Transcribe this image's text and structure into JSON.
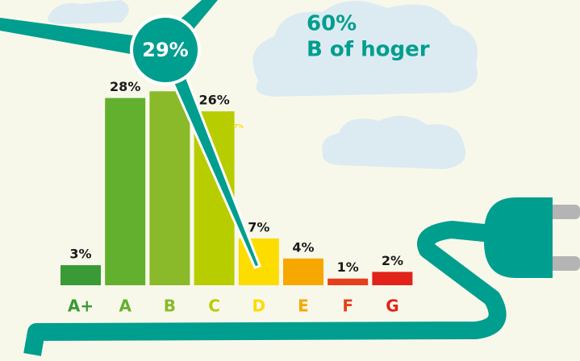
{
  "chart_data": {
    "type": "bar",
    "headline": "60%",
    "subheadline": "B of hoger",
    "small_note": "7%",
    "categories": [
      "A+",
      "A",
      "B",
      "C",
      "D",
      "E",
      "F",
      "G"
    ],
    "values": [
      3,
      28,
      29,
      26,
      7,
      4,
      1,
      2
    ],
    "value_labels": [
      "3%",
      "28%",
      "29%",
      "26%",
      "7%",
      "4%",
      "1%",
      "2%"
    ],
    "colors": [
      "#3a9a35",
      "#63b02f",
      "#8aba29",
      "#b8cd00",
      "#fddc00",
      "#f6a800",
      "#e4401c",
      "#e2231a"
    ]
  }
}
